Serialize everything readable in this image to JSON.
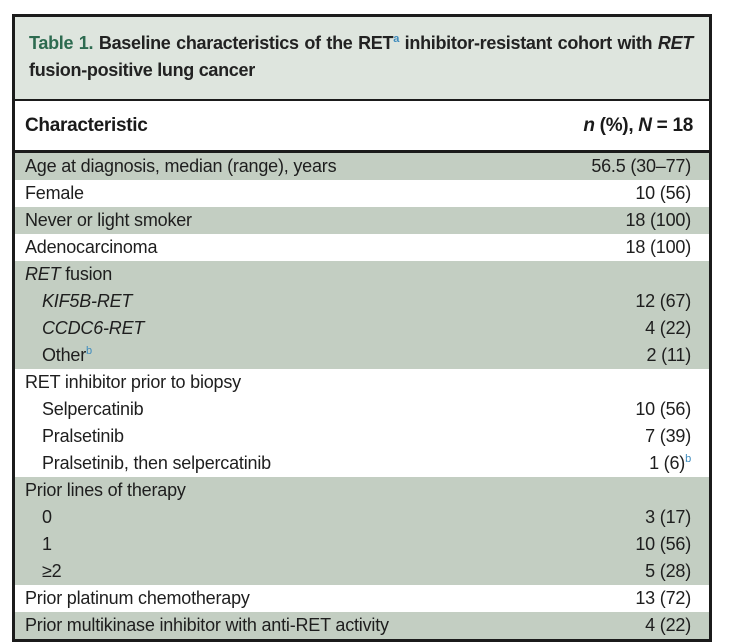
{
  "table": {
    "title": {
      "label": "Table 1.",
      "part1": " Baseline characteristics of the RET",
      "sup": "a",
      "part2": " inhibitor-resistant cohort with ",
      "gene": "RET",
      "part3": " fusion-positive lung cancer"
    },
    "header": {
      "characteristic": "Characteristic",
      "n_italic": "n",
      "pct": " (%), ",
      "N_italic": "N",
      "count": " = 18"
    },
    "rows": [
      {
        "label": "Age at diagnosis, median (range), years",
        "value": "56.5 (30–77)"
      },
      {
        "label": "Female",
        "value": "10 (56)"
      },
      {
        "label": "Never or light smoker",
        "value": "18 (100)"
      },
      {
        "label": "Adenocarcinoma",
        "value": "18 (100)"
      },
      {
        "label_italic": "RET",
        "label": " fusion"
      },
      {
        "label_italic": "KIF5B-RET",
        "value": "12 (67)"
      },
      {
        "label_italic": "CCDC6-RET",
        "value": "4 (22)"
      },
      {
        "label": "Other",
        "label_sup": "b",
        "value": "2 (11)"
      },
      {
        "label": "RET inhibitor prior to biopsy"
      },
      {
        "label": "Selpercatinib",
        "value": "10 (56)"
      },
      {
        "label": "Pralsetinib",
        "value": "7 (39)"
      },
      {
        "label": "Pralsetinib, then selpercatinib",
        "value": "1 (6)",
        "value_sup": "b"
      },
      {
        "label": "Prior lines of therapy"
      },
      {
        "label": "0",
        "value": "3 (17)"
      },
      {
        "label": "1",
        "value": "10 (56)"
      },
      {
        "label": "≥2",
        "value": "5 (28)"
      },
      {
        "label": "Prior platinum chemotherapy",
        "value": "13 (72)"
      },
      {
        "label": "Prior multikinase inhibitor with anti-RET activity",
        "value": "4 (22)"
      }
    ],
    "colors": {
      "row_green": "#c3cec2",
      "caption_bg": "#dee5de",
      "table_number_green": "#2d6b50",
      "footnote_blue": "#3e8bbd",
      "border_black": "#1b1b1b"
    }
  }
}
